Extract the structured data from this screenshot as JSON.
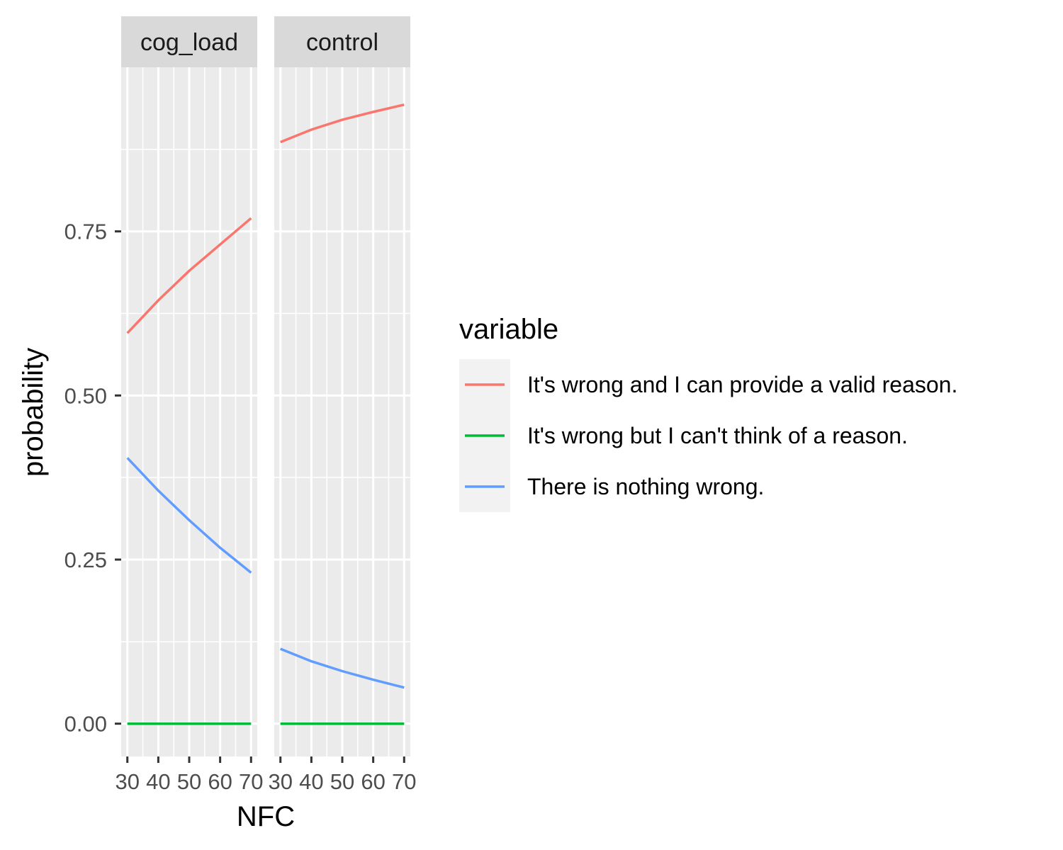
{
  "chart_data": {
    "type": "line",
    "xlabel": "NFC",
    "ylabel": "probability",
    "x_ticks": [
      30,
      40,
      50,
      60,
      70
    ],
    "y_ticks": [
      0.0,
      0.25,
      0.5,
      0.75
    ],
    "y_tick_labels": [
      "0.00",
      "0.25",
      "0.50",
      "0.75"
    ],
    "xlim": [
      28,
      72
    ],
    "ylim": [
      -0.05,
      1.0
    ],
    "grid": true,
    "legend": {
      "title": "variable",
      "placement": "right"
    },
    "series_styles": [
      {
        "name": "It's wrong and I can provide a valid reason.",
        "color": "#F8766D"
      },
      {
        "name": "It's wrong but I can't think of a reason.",
        "color": "#00BA38"
      },
      {
        "name": "There is nothing wrong.",
        "color": "#619CFF"
      }
    ],
    "panels": [
      {
        "label": "cog_load",
        "x": [
          30,
          40,
          50,
          60,
          70
        ],
        "series": [
          {
            "name": "It's wrong and I can provide a valid reason.",
            "values": [
              0.595,
              0.645,
              0.69,
              0.73,
              0.77
            ]
          },
          {
            "name": "It's wrong but I can't think of a reason.",
            "values": [
              0.0,
              0.0,
              0.0,
              0.0,
              0.0
            ]
          },
          {
            "name": "There is nothing wrong.",
            "values": [
              0.405,
              0.355,
              0.31,
              0.268,
              0.23
            ]
          }
        ]
      },
      {
        "label": "control",
        "x": [
          30,
          40,
          50,
          60,
          70
        ],
        "series": [
          {
            "name": "It's wrong and I can provide a valid reason.",
            "values": [
              0.886,
              0.905,
              0.92,
              0.932,
              0.943
            ]
          },
          {
            "name": "It's wrong but I can't think of a reason.",
            "values": [
              0.0,
              0.0,
              0.0,
              0.0,
              0.0
            ]
          },
          {
            "name": "There is nothing wrong.",
            "values": [
              0.114,
              0.095,
              0.08,
              0.067,
              0.055
            ]
          }
        ]
      }
    ]
  }
}
